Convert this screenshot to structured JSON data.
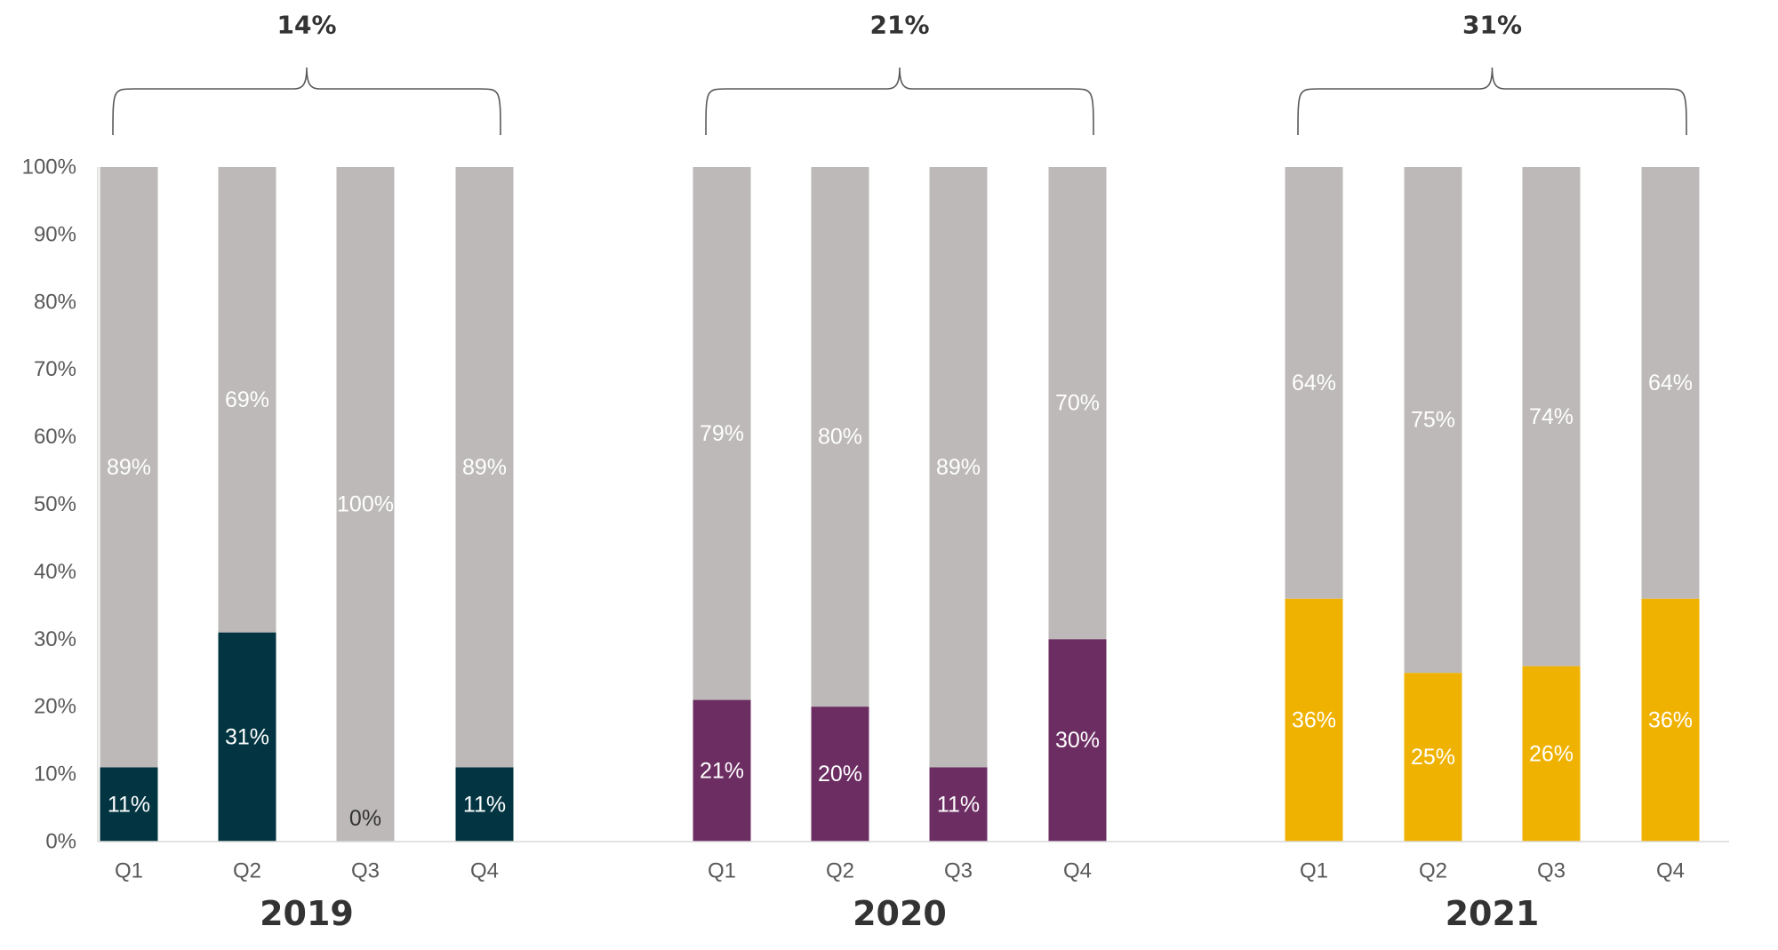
{
  "chart_data": {
    "type": "bar",
    "stacked": true,
    "ylim": [
      0,
      100
    ],
    "yticks": [
      "0%",
      "10%",
      "20%",
      "30%",
      "40%",
      "50%",
      "60%",
      "70%",
      "80%",
      "90%",
      "100%"
    ],
    "background_color": "#BCB9B8",
    "groups": [
      {
        "year": "2019",
        "total_label": "14%",
        "color": "#023541",
        "categories": [
          "Q1",
          "Q2",
          "Q3",
          "Q4"
        ],
        "values": [
          11,
          31,
          0,
          11
        ],
        "value_labels": [
          "11%",
          "31%",
          "0%",
          "11%"
        ],
        "remainder": [
          89,
          69,
          100,
          89
        ],
        "remainder_labels": [
          "89%",
          "69%",
          "100%",
          "89%"
        ]
      },
      {
        "year": "2020",
        "total_label": "21%",
        "color": "#6C2D62",
        "categories": [
          "Q1",
          "Q2",
          "Q3",
          "Q4"
        ],
        "values": [
          21,
          20,
          11,
          30
        ],
        "value_labels": [
          "21%",
          "20%",
          "11%",
          "30%"
        ],
        "remainder": [
          79,
          80,
          89,
          70
        ],
        "remainder_labels": [
          "79%",
          "80%",
          "89%",
          "70%"
        ]
      },
      {
        "year": "2021",
        "total_label": "31%",
        "color": "#F0B200",
        "categories": [
          "Q1",
          "Q2",
          "Q3",
          "Q4"
        ],
        "values": [
          36,
          25,
          26,
          36
        ],
        "value_labels": [
          "36%",
          "25%",
          "26%",
          "36%"
        ],
        "remainder": [
          64,
          75,
          74,
          64
        ],
        "remainder_labels": [
          "64%",
          "75%",
          "74%",
          "64%"
        ]
      }
    ]
  }
}
